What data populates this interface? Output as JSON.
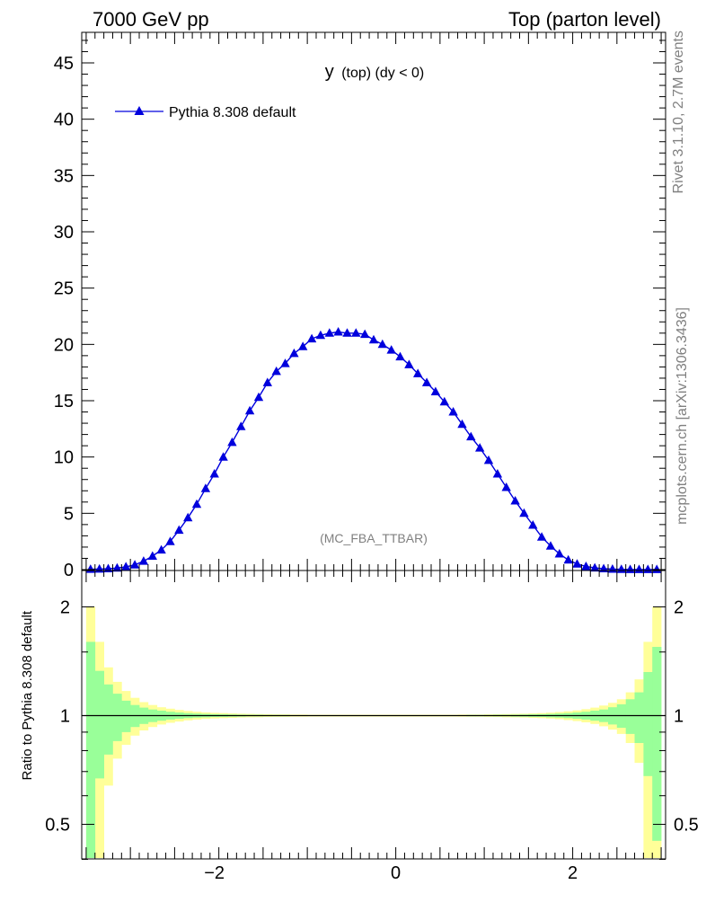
{
  "header": {
    "left": "7000 GeV pp",
    "right": "Top (parton level)"
  },
  "side": {
    "rivet": "Rivet 3.1.10,  2.7M events",
    "mcplots": "mcplots.cern.ch [arXiv:1306.3436]"
  },
  "chart_data": [
    {
      "type": "line",
      "title_main": "y",
      "title_rest": "(top) (dy < 0)",
      "watermark": "(MC_FBA_TTBAR)",
      "xlabel": "",
      "ylabel": "",
      "xlim": [
        -3.55,
        3.05
      ],
      "ylim": [
        0,
        48
      ],
      "yticks": [
        0,
        5,
        10,
        15,
        20,
        25,
        30,
        35,
        40,
        45
      ],
      "legend_placement": "top-left",
      "series": [
        {
          "name": "Pythia 8.308 default",
          "color": "#0000dd",
          "marker": "triangle",
          "x": [
            -3.45,
            -3.35,
            -3.25,
            -3.15,
            -3.05,
            -2.95,
            -2.85,
            -2.75,
            -2.65,
            -2.55,
            -2.45,
            -2.35,
            -2.25,
            -2.15,
            -2.05,
            -1.95,
            -1.85,
            -1.75,
            -1.65,
            -1.55,
            -1.45,
            -1.35,
            -1.25,
            -1.15,
            -1.05,
            -0.95,
            -0.85,
            -0.75,
            -0.65,
            -0.55,
            -0.45,
            -0.35,
            -0.25,
            -0.15,
            -0.05,
            0.05,
            0.15,
            0.25,
            0.35,
            0.45,
            0.55,
            0.65,
            0.75,
            0.85,
            0.95,
            1.05,
            1.15,
            1.25,
            1.35,
            1.45,
            1.55,
            1.65,
            1.75,
            1.85,
            1.95,
            2.05,
            2.15,
            2.25,
            2.35,
            2.45,
            2.55,
            2.65,
            2.75,
            2.85,
            2.95
          ],
          "y": [
            0.03,
            0.05,
            0.08,
            0.14,
            0.25,
            0.42,
            0.75,
            1.2,
            1.75,
            2.5,
            3.5,
            4.6,
            5.8,
            7.2,
            8.5,
            10.0,
            11.3,
            12.7,
            14.1,
            15.3,
            16.6,
            17.6,
            18.3,
            19.2,
            19.8,
            20.5,
            20.8,
            21.0,
            21.1,
            21.0,
            21.0,
            20.9,
            20.4,
            20.0,
            19.5,
            18.9,
            18.2,
            17.4,
            16.6,
            15.8,
            14.9,
            14.0,
            12.9,
            11.8,
            10.8,
            9.7,
            8.5,
            7.3,
            6.1,
            5.0,
            3.95,
            2.9,
            2.1,
            1.4,
            0.85,
            0.5,
            0.28,
            0.15,
            0.08,
            0.04,
            0.02,
            0.01,
            0.01,
            0.01,
            0.01
          ]
        }
      ]
    },
    {
      "type": "area",
      "ylabel": "Ratio to Pythia 8.308 default",
      "xlim": [
        -3.55,
        3.05
      ],
      "ylim": [
        0.35,
        2.3
      ],
      "log_y": true,
      "yticks": [
        0.5,
        1,
        2
      ],
      "xticks": [
        -2,
        0,
        2
      ],
      "reference": 1,
      "bands": [
        {
          "name": "stat",
          "color": "#99ff99",
          "x": [
            -3.45,
            -3.35,
            -3.25,
            -3.15,
            -3.05,
            -2.95,
            -2.85,
            -2.75,
            -2.65,
            -2.55,
            -2.45,
            -2.35,
            -2.25,
            -2.15,
            -2.05,
            -1.95,
            -1.85,
            -1.75,
            -1.65,
            -1.55,
            -1.45,
            -1.35,
            -1.25,
            -1.15,
            -1.05,
            -0.95,
            -0.85,
            -0.75,
            -0.65,
            -0.55,
            -0.45,
            -0.35,
            -0.25,
            -0.15,
            -0.05,
            0.05,
            0.15,
            0.25,
            0.35,
            0.45,
            0.55,
            0.65,
            0.75,
            0.85,
            0.95,
            1.05,
            1.15,
            1.25,
            1.35,
            1.45,
            1.55,
            1.65,
            1.75,
            1.85,
            1.95,
            2.05,
            2.15,
            2.25,
            2.35,
            2.45,
            2.55,
            2.65,
            2.75,
            2.85,
            2.95
          ],
          "half_width": [
            0.6,
            0.33,
            0.22,
            0.15,
            0.1,
            0.07,
            0.052,
            0.04,
            0.032,
            0.025,
            0.02,
            0.016,
            0.013,
            0.011,
            0.009,
            0.008,
            0.007,
            0.006,
            0.005,
            0.005,
            0.004,
            0.004,
            0.004,
            0.003,
            0.003,
            0.003,
            0.003,
            0.003,
            0.003,
            0.003,
            0.003,
            0.003,
            0.003,
            0.003,
            0.003,
            0.003,
            0.003,
            0.003,
            0.003,
            0.003,
            0.003,
            0.003,
            0.003,
            0.004,
            0.004,
            0.004,
            0.005,
            0.005,
            0.006,
            0.007,
            0.008,
            0.009,
            0.011,
            0.013,
            0.016,
            0.02,
            0.025,
            0.032,
            0.04,
            0.055,
            0.075,
            0.11,
            0.16,
            0.32,
            0.55
          ]
        },
        {
          "name": "syst",
          "color": "#ffff99",
          "x": [
            -3.45,
            -3.35,
            -3.25,
            -3.15,
            -3.05,
            -2.95,
            -2.85,
            -2.75,
            -2.65,
            -2.55,
            -2.45,
            -2.35,
            -2.25,
            -2.15,
            -2.05,
            -1.95,
            -1.85,
            -1.75,
            -1.65,
            -1.55,
            -1.45,
            -1.35,
            -1.25,
            -1.15,
            -1.05,
            -0.95,
            -0.85,
            -0.75,
            -0.65,
            -0.55,
            -0.45,
            -0.35,
            -0.25,
            -0.15,
            -0.05,
            0.05,
            0.15,
            0.25,
            0.35,
            0.45,
            0.55,
            0.65,
            0.75,
            0.85,
            0.95,
            1.05,
            1.15,
            1.25,
            1.35,
            1.45,
            1.55,
            1.65,
            1.75,
            1.85,
            1.95,
            2.05,
            2.15,
            2.25,
            2.35,
            2.45,
            2.55,
            2.65,
            2.75,
            2.85,
            2.95
          ],
          "half_width": [
            1.0,
            0.6,
            0.36,
            0.24,
            0.17,
            0.12,
            0.09,
            0.07,
            0.055,
            0.045,
            0.037,
            0.03,
            0.025,
            0.021,
            0.018,
            0.016,
            0.014,
            0.012,
            0.011,
            0.01,
            0.009,
            0.008,
            0.008,
            0.007,
            0.007,
            0.006,
            0.006,
            0.006,
            0.006,
            0.006,
            0.006,
            0.006,
            0.006,
            0.006,
            0.006,
            0.006,
            0.006,
            0.006,
            0.006,
            0.006,
            0.006,
            0.006,
            0.007,
            0.007,
            0.007,
            0.008,
            0.009,
            0.01,
            0.011,
            0.012,
            0.014,
            0.016,
            0.019,
            0.023,
            0.028,
            0.034,
            0.042,
            0.052,
            0.066,
            0.085,
            0.11,
            0.16,
            0.26,
            0.6,
            1.0
          ]
        }
      ]
    }
  ]
}
